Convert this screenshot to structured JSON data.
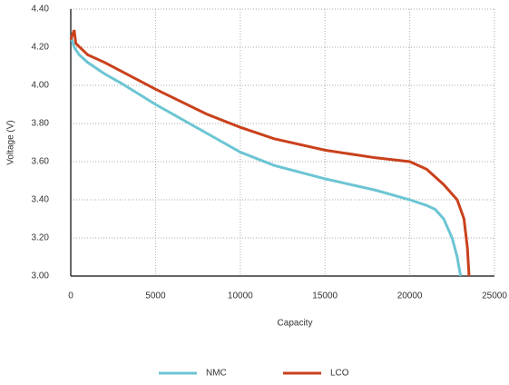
{
  "chart_data": {
    "type": "line",
    "x_label": "Capacity",
    "y_label": "Voltage  (V)",
    "xlim": [
      0,
      25000
    ],
    "xticks": [
      0,
      5000,
      10000,
      15000,
      20000,
      25000
    ],
    "ylim": [
      3.0,
      4.4
    ],
    "yticks": [
      {
        "value": 3.0,
        "label": "3.00"
      },
      {
        "value": 3.2,
        "label": "3.20"
      },
      {
        "value": 3.4,
        "label": "3.40"
      },
      {
        "value": 3.6,
        "label": "3.60"
      },
      {
        "value": 3.8,
        "label": "3.80"
      },
      {
        "value": 4.0,
        "label": "4.00"
      },
      {
        "value": 4.2,
        "label": "4.20"
      },
      {
        "value": 4.4,
        "label": "4.40"
      }
    ],
    "grid": true,
    "legend": "bottom",
    "series": [
      {
        "name": "NMC",
        "color": "#6cc5d3",
        "x": [
          0,
          200,
          500,
          1000,
          2000,
          3000,
          5000,
          7000,
          9000,
          10000,
          12000,
          15000,
          18000,
          20000,
          21000,
          21500,
          22000,
          22500,
          22800,
          23000
        ],
        "values": [
          4.26,
          4.2,
          4.16,
          4.12,
          4.06,
          4.01,
          3.9,
          3.8,
          3.7,
          3.65,
          3.58,
          3.51,
          3.45,
          3.4,
          3.37,
          3.35,
          3.3,
          3.2,
          3.1,
          3.0
        ]
      },
      {
        "name": "LCO",
        "color": "#c9411c",
        "x": [
          0,
          200,
          300,
          1000,
          2000,
          5000,
          8000,
          10000,
          12000,
          15000,
          18000,
          20000,
          21000,
          22000,
          22800,
          23200,
          23400,
          23500
        ],
        "values": [
          4.24,
          4.29,
          4.22,
          4.16,
          4.12,
          3.98,
          3.85,
          3.78,
          3.72,
          3.66,
          3.62,
          3.6,
          3.56,
          3.48,
          3.4,
          3.3,
          3.15,
          3.0
        ]
      }
    ]
  }
}
